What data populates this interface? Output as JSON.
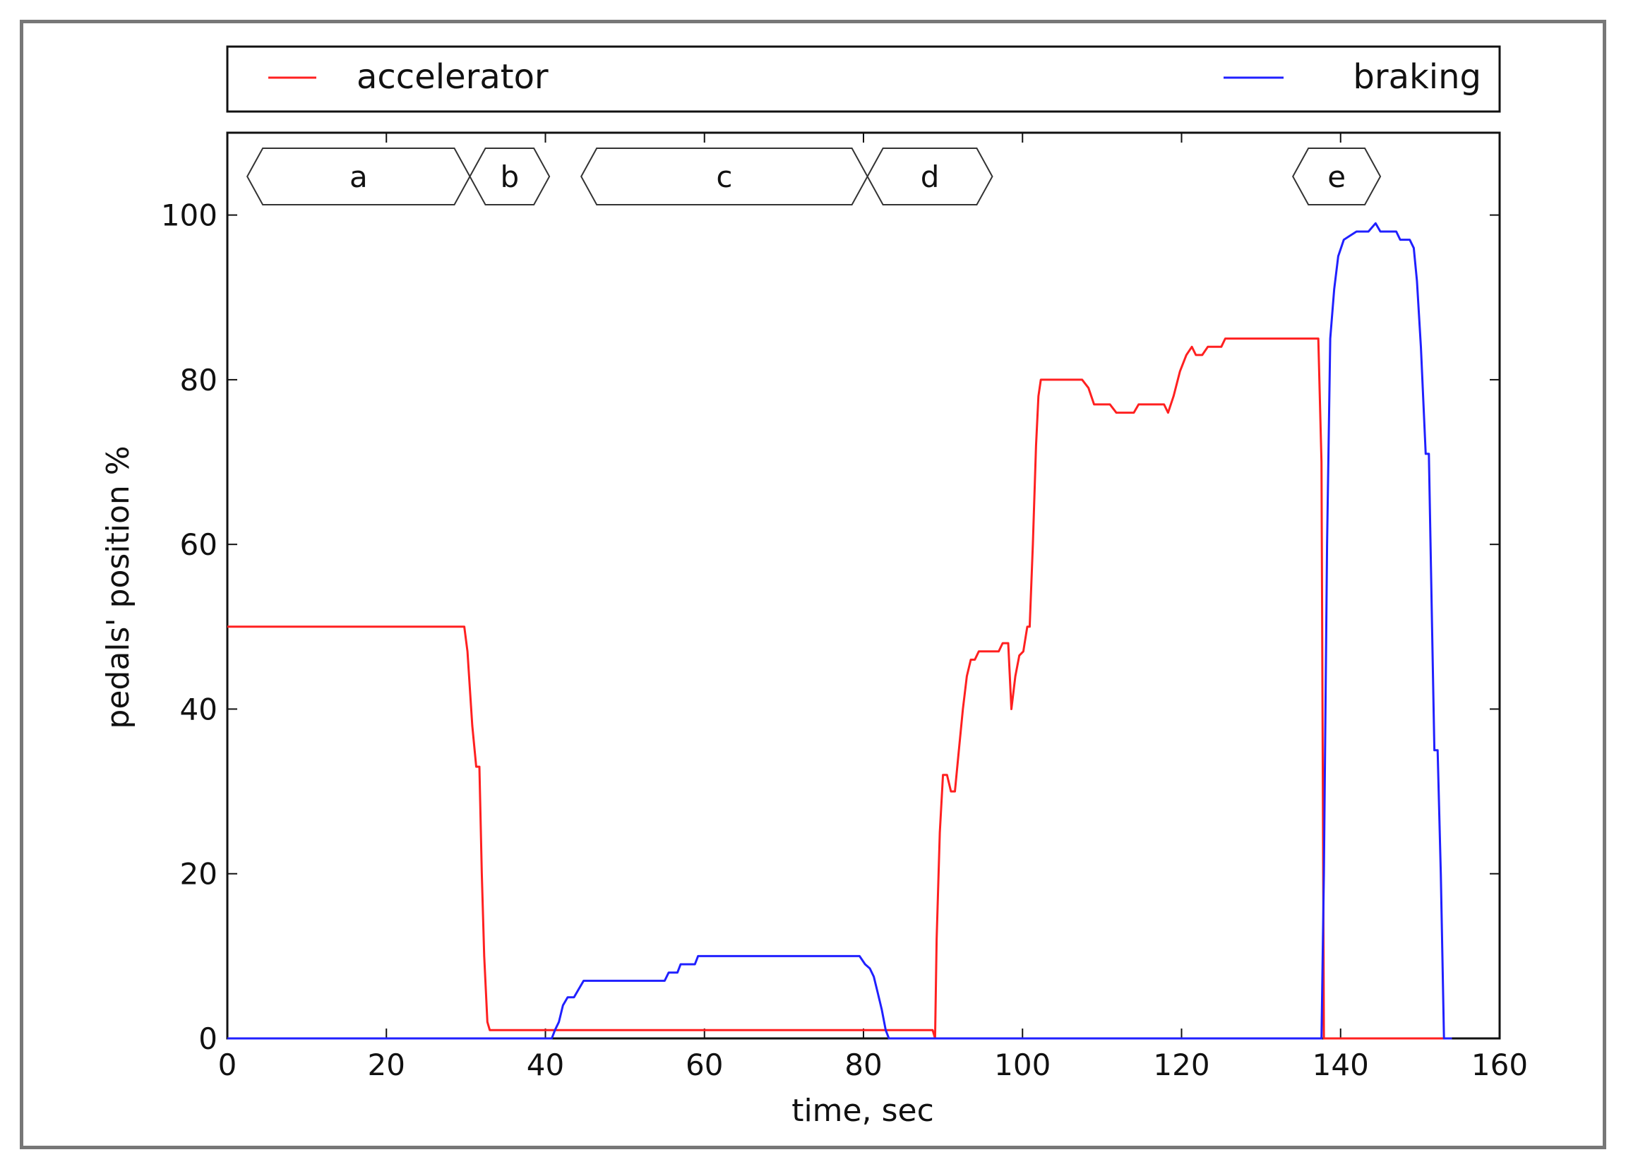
{
  "chart_data": {
    "type": "line",
    "title": "",
    "xlabel": "time, sec",
    "ylabel": "pedals' position %",
    "xlim": [
      0,
      160
    ],
    "ylim": [
      0,
      110
    ],
    "xticks": [
      0,
      20,
      40,
      60,
      80,
      100,
      120,
      140,
      160
    ],
    "yticks": [
      0,
      20,
      40,
      60,
      80,
      100
    ],
    "grid": false,
    "legend": {
      "placement": "top",
      "entries": [
        "accelerator",
        "braking"
      ]
    },
    "series": [
      {
        "name": "accelerator",
        "color": "#ff2020",
        "points": [
          [
            0,
            50
          ],
          [
            29.8,
            50
          ],
          [
            30.2,
            47
          ],
          [
            30.8,
            38
          ],
          [
            31.3,
            33
          ],
          [
            31.7,
            33
          ],
          [
            32,
            20
          ],
          [
            32.3,
            10
          ],
          [
            32.7,
            2
          ],
          [
            33,
            1
          ],
          [
            60,
            1
          ],
          [
            88.7,
            1
          ],
          [
            89,
            0
          ],
          [
            89.2,
            12
          ],
          [
            89.6,
            25
          ],
          [
            90,
            32
          ],
          [
            90.5,
            32
          ],
          [
            91,
            30
          ],
          [
            91.5,
            30
          ],
          [
            92,
            35
          ],
          [
            92.5,
            40
          ],
          [
            93,
            44
          ],
          [
            93.5,
            46
          ],
          [
            94,
            46
          ],
          [
            94.5,
            47
          ],
          [
            95,
            47
          ],
          [
            97,
            47
          ],
          [
            97.5,
            48
          ],
          [
            98.2,
            48
          ],
          [
            98.6,
            40
          ],
          [
            99.1,
            44
          ],
          [
            99.6,
            46.5
          ],
          [
            100.1,
            47
          ],
          [
            100.6,
            50
          ],
          [
            100.9,
            50
          ],
          [
            101.3,
            60
          ],
          [
            101.7,
            72
          ],
          [
            102,
            78
          ],
          [
            102.3,
            80
          ],
          [
            107.5,
            80
          ],
          [
            108.3,
            79
          ],
          [
            109,
            77
          ],
          [
            111,
            77
          ],
          [
            111.8,
            76
          ],
          [
            114,
            76
          ],
          [
            114.6,
            77
          ],
          [
            117.8,
            77
          ],
          [
            118.3,
            76
          ],
          [
            119,
            78
          ],
          [
            119.8,
            81
          ],
          [
            120.6,
            83
          ],
          [
            121.3,
            84
          ],
          [
            121.8,
            83
          ],
          [
            122.6,
            83
          ],
          [
            123.3,
            84
          ],
          [
            125,
            84
          ],
          [
            125.5,
            85
          ],
          [
            130,
            85
          ],
          [
            137.2,
            85
          ],
          [
            137.6,
            70
          ],
          [
            137.9,
            0
          ],
          [
            154,
            0
          ]
        ]
      },
      {
        "name": "braking",
        "color": "#2020ff",
        "points": [
          [
            0,
            0
          ],
          [
            40.8,
            0
          ],
          [
            41.2,
            1
          ],
          [
            41.7,
            2
          ],
          [
            42.2,
            4
          ],
          [
            42.8,
            5
          ],
          [
            43.6,
            5
          ],
          [
            44.2,
            6
          ],
          [
            44.8,
            7
          ],
          [
            47,
            7
          ],
          [
            52,
            7
          ],
          [
            55,
            7
          ],
          [
            55.5,
            8
          ],
          [
            56.6,
            8
          ],
          [
            57,
            9
          ],
          [
            58.8,
            9
          ],
          [
            59.2,
            10
          ],
          [
            65,
            10
          ],
          [
            79.5,
            10
          ],
          [
            80.2,
            9
          ],
          [
            80.8,
            8.5
          ],
          [
            81.3,
            7.5
          ],
          [
            81.8,
            5.5
          ],
          [
            82.3,
            3.5
          ],
          [
            82.8,
            1
          ],
          [
            83.2,
            0
          ],
          [
            137.6,
            0
          ],
          [
            137.9,
            20
          ],
          [
            138.3,
            60
          ],
          [
            138.7,
            85
          ],
          [
            139.2,
            91
          ],
          [
            139.7,
            95
          ],
          [
            140.4,
            97
          ],
          [
            141.2,
            97.5
          ],
          [
            142,
            98
          ],
          [
            143.5,
            98
          ],
          [
            144.4,
            99
          ],
          [
            145,
            98
          ],
          [
            147,
            98
          ],
          [
            147.5,
            97
          ],
          [
            148.7,
            97
          ],
          [
            149.2,
            96
          ],
          [
            149.6,
            92
          ],
          [
            150.1,
            84
          ],
          [
            150.7,
            71
          ],
          [
            151.1,
            71
          ],
          [
            151.5,
            50
          ],
          [
            151.8,
            35
          ],
          [
            152.2,
            35
          ],
          [
            152.6,
            20
          ],
          [
            153,
            0
          ],
          [
            154,
            0
          ]
        ]
      }
    ],
    "annotations": [
      {
        "label": "a",
        "start": 2.5,
        "end": 30.5
      },
      {
        "label": "b",
        "start": 30.5,
        "end": 40.5
      },
      {
        "label": "c",
        "start": 44.5,
        "end": 80.5
      },
      {
        "label": "d",
        "start": 80.5,
        "end": 96.2
      },
      {
        "label": "e",
        "start": 134,
        "end": 145
      }
    ]
  }
}
